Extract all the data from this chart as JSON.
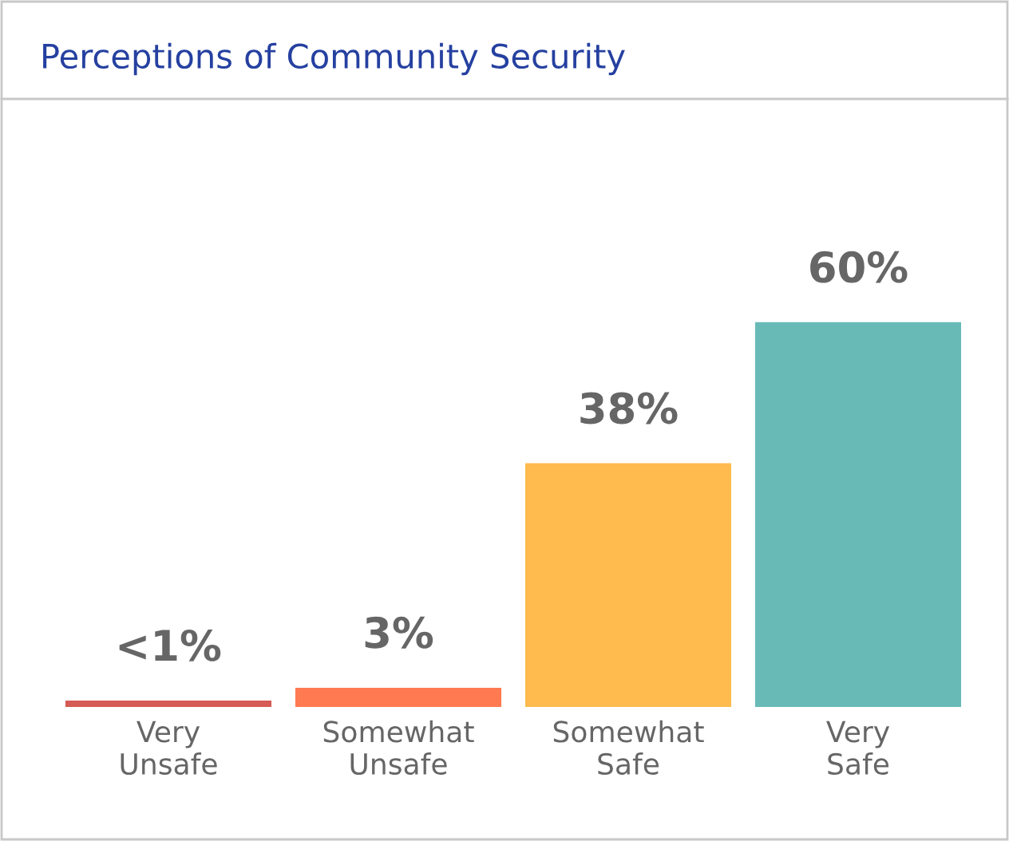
{
  "chart_data": {
    "type": "bar",
    "title": "Perceptions of Community Security",
    "categories": [
      "Very\nUnsafe",
      "Somewhat\nUnsafe",
      "Somewhat\nSafe",
      "Very\nSafe"
    ],
    "values": [
      1,
      3,
      38,
      60
    ],
    "colors": [
      "#d65a55",
      "#ff7a50",
      "#ffbb4e",
      "#68bab7"
    ],
    "value_labels": [
      "<1%",
      "3%",
      "38%",
      "60%"
    ],
    "grid": false,
    "legend": false
  }
}
